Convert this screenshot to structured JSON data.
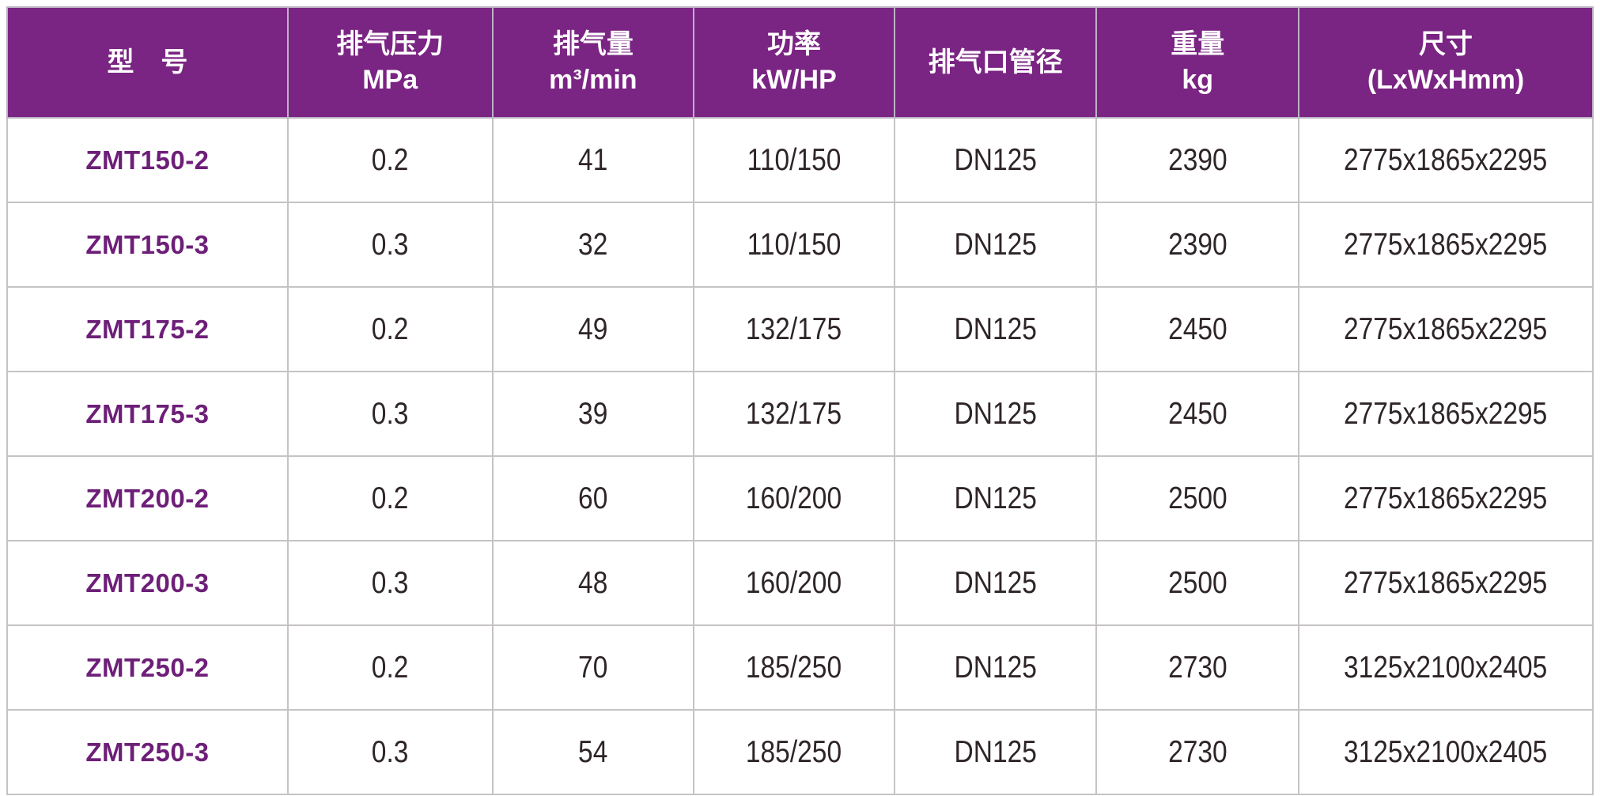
{
  "colors": {
    "header_bg": "#7a2483",
    "header_text": "#ffffff",
    "model_text": "#6d1f78",
    "cell_text": "#2e2529",
    "grid_line": "#c6c3c4"
  },
  "table": {
    "columns": [
      {
        "label": "型　号",
        "unit": ""
      },
      {
        "label": "排气压力",
        "unit": "MPa"
      },
      {
        "label": "排气量",
        "unit": "m³/min"
      },
      {
        "label": "功率",
        "unit": "kW/HP"
      },
      {
        "label": "排气口管径",
        "unit": ""
      },
      {
        "label": "重量",
        "unit": "kg"
      },
      {
        "label": "尺寸",
        "unit": "(LxWxHmm)"
      }
    ],
    "rows": [
      [
        "ZMT150-2",
        "0.2",
        "41",
        "110/150",
        "DN125",
        "2390",
        "2775x1865x2295"
      ],
      [
        "ZMT150-3",
        "0.3",
        "32",
        "110/150",
        "DN125",
        "2390",
        "2775x1865x2295"
      ],
      [
        "ZMT175-2",
        "0.2",
        "49",
        "132/175",
        "DN125",
        "2450",
        "2775x1865x2295"
      ],
      [
        "ZMT175-3",
        "0.3",
        "39",
        "132/175",
        "DN125",
        "2450",
        "2775x1865x2295"
      ],
      [
        "ZMT200-2",
        "0.2",
        "60",
        "160/200",
        "DN125",
        "2500",
        "2775x1865x2295"
      ],
      [
        "ZMT200-3",
        "0.3",
        "48",
        "160/200",
        "DN125",
        "2500",
        "2775x1865x2295"
      ],
      [
        "ZMT250-2",
        "0.2",
        "70",
        "185/250",
        "DN125",
        "2730",
        "3125x2100x2405"
      ],
      [
        "ZMT250-3",
        "0.3",
        "54",
        "185/250",
        "DN125",
        "2730",
        "3125x2100x2405"
      ]
    ]
  }
}
